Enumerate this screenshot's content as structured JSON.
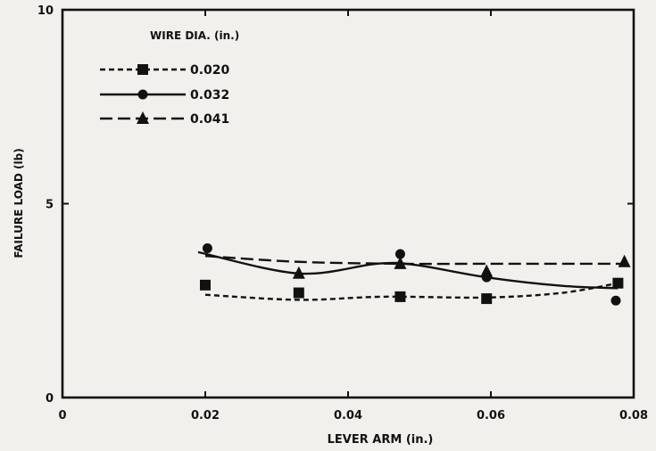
{
  "chart_data": {
    "type": "line",
    "title": "",
    "xlabel": "LEVER ARM (in.)",
    "ylabel": "FAILURE LOAD (lb)",
    "xlim": [
      0,
      0.08
    ],
    "ylim": [
      0,
      10
    ],
    "x_ticks": [
      "0",
      "0.02",
      "0.04",
      "0.06",
      "0.08"
    ],
    "y_ticks": [
      "0",
      "5",
      "10"
    ],
    "legend": {
      "title": "WIRE DIA. (in.)",
      "placement": "top-left"
    },
    "grid": false,
    "series": [
      {
        "name": "0.020",
        "marker": "square",
        "line_style": "short-dash",
        "points": [
          [
            0.02,
            2.9
          ],
          [
            0.0331,
            2.7
          ],
          [
            0.0473,
            2.6
          ],
          [
            0.0594,
            2.55
          ],
          [
            0.0778,
            2.95
          ]
        ],
        "curve": [
          [
            0.02,
            2.65
          ],
          [
            0.0331,
            2.52
          ],
          [
            0.045,
            2.6
          ],
          [
            0.0594,
            2.58
          ],
          [
            0.07,
            2.7
          ],
          [
            0.0778,
            2.95
          ]
        ]
      },
      {
        "name": "0.032",
        "marker": "circle",
        "line_style": "solid",
        "points": [
          [
            0.0203,
            3.85
          ],
          [
            0.0473,
            3.7
          ],
          [
            0.0594,
            3.1
          ],
          [
            0.0775,
            2.5
          ]
        ],
        "curve": [
          [
            0.019,
            3.75
          ],
          [
            0.0331,
            3.2
          ],
          [
            0.044,
            3.45
          ],
          [
            0.0494,
            3.42
          ],
          [
            0.0594,
            3.1
          ],
          [
            0.07,
            2.88
          ],
          [
            0.0778,
            2.82
          ]
        ]
      },
      {
        "name": "0.041",
        "marker": "triangle",
        "line_style": "long-dash",
        "points": [
          [
            0.0331,
            3.2
          ],
          [
            0.0473,
            3.45
          ],
          [
            0.0594,
            3.25
          ],
          [
            0.0787,
            3.5
          ]
        ],
        "curve": [
          [
            0.02,
            3.65
          ],
          [
            0.0331,
            3.5
          ],
          [
            0.0473,
            3.45
          ],
          [
            0.0594,
            3.45
          ],
          [
            0.0787,
            3.45
          ]
        ]
      }
    ]
  }
}
